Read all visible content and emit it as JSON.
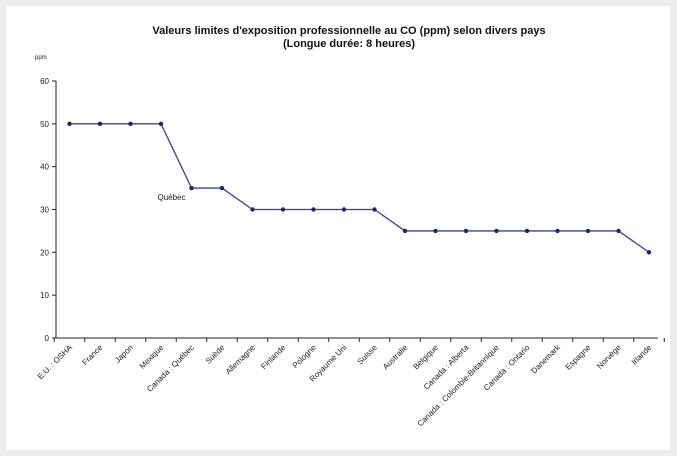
{
  "chart_data": {
    "type": "line",
    "title": "Valeurs limites d'exposition professionnelle au CO (ppm) selon divers pays",
    "subtitle": "(Longue durée: 8 heures)",
    "ylabel": "ppm",
    "xlabel": "",
    "ylim": [
      0,
      60
    ],
    "yticks": [
      0,
      10,
      20,
      30,
      40,
      50,
      60
    ],
    "grid": false,
    "legend": "none",
    "categories": [
      "E.U. : OSHA",
      "France",
      "Japon",
      "Mexique",
      "Canada : Québec",
      "Suède",
      "Allemagne",
      "Finlande",
      "Pologne",
      "Royaume Uni",
      "Suisse",
      "Australie",
      "Belgique",
      "Canada : Alberta",
      "Canada : Colombie-Britannique",
      "Canada : Ontario",
      "Danemark",
      "Espagne",
      "Norvège",
      "Irlande"
    ],
    "series": [
      {
        "values": [
          50,
          50,
          50,
          50,
          35,
          35,
          30,
          30,
          30,
          30,
          30,
          25,
          25,
          25,
          25,
          25,
          25,
          25,
          25,
          20
        ]
      }
    ],
    "annotations": [
      {
        "text": "Québec",
        "category": "Canada : Québec",
        "value": 35
      }
    ],
    "colors": {
      "line": "#3d3fa0",
      "marker": "#23246e",
      "axis": "#222222"
    }
  }
}
